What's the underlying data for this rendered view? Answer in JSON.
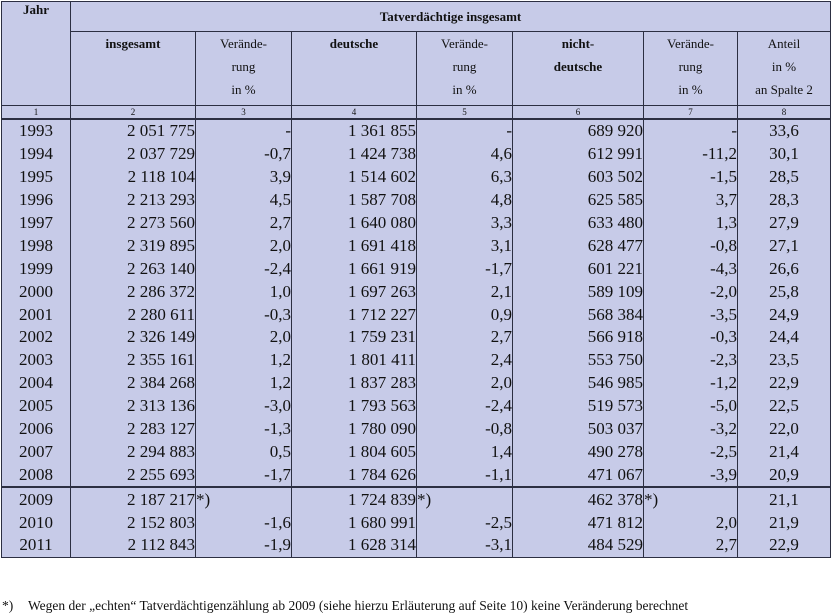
{
  "table": {
    "group_header": "Tatverdächtige insgesamt",
    "columns": {
      "jahr": "Jahr",
      "insgesamt": "insgesamt",
      "veraenderung": [
        "Verände-",
        "rung",
        "in %"
      ],
      "deutsche": "deutsche",
      "nichtdeutsche": [
        "nicht-",
        "deutsche"
      ],
      "anteil": [
        "Anteil",
        "in %",
        "an Spalte 2"
      ]
    },
    "column_numbers": [
      "1",
      "2",
      "3",
      "4",
      "5",
      "6",
      "7",
      "8"
    ],
    "rows": [
      {
        "year": "1993",
        "total": "2 051 775",
        "total_chg": "-",
        "german": "1 361 855",
        "german_chg": "-",
        "foreign": "689 920",
        "foreign_chg": "-",
        "share": "33,6"
      },
      {
        "year": "1994",
        "total": "2 037 729",
        "total_chg": "-0,7",
        "german": "1 424 738",
        "german_chg": "4,6",
        "foreign": "612 991",
        "foreign_chg": "-11,2",
        "share": "30,1"
      },
      {
        "year": "1995",
        "total": "2 118 104",
        "total_chg": "3,9",
        "german": "1 514 602",
        "german_chg": "6,3",
        "foreign": "603 502",
        "foreign_chg": "-1,5",
        "share": "28,5"
      },
      {
        "year": "1996",
        "total": "2 213 293",
        "total_chg": "4,5",
        "german": "1 587 708",
        "german_chg": "4,8",
        "foreign": "625 585",
        "foreign_chg": "3,7",
        "share": "28,3"
      },
      {
        "year": "1997",
        "total": "2 273 560",
        "total_chg": "2,7",
        "german": "1 640 080",
        "german_chg": "3,3",
        "foreign": "633 480",
        "foreign_chg": "1,3",
        "share": "27,9"
      },
      {
        "year": "1998",
        "total": "2 319 895",
        "total_chg": "2,0",
        "german": "1 691 418",
        "german_chg": "3,1",
        "foreign": "628 477",
        "foreign_chg": "-0,8",
        "share": "27,1"
      },
      {
        "year": "1999",
        "total": "2 263 140",
        "total_chg": "-2,4",
        "german": "1 661 919",
        "german_chg": "-1,7",
        "foreign": "601 221",
        "foreign_chg": "-4,3",
        "share": "26,6"
      },
      {
        "year": "2000",
        "total": "2 286 372",
        "total_chg": "1,0",
        "german": "1 697 263",
        "german_chg": "2,1",
        "foreign": "589 109",
        "foreign_chg": "-2,0",
        "share": "25,8"
      },
      {
        "year": "2001",
        "total": "2 280 611",
        "total_chg": "-0,3",
        "german": "1 712 227",
        "german_chg": "0,9",
        "foreign": "568 384",
        "foreign_chg": "-3,5",
        "share": "24,9"
      },
      {
        "year": "2002",
        "total": "2 326 149",
        "total_chg": "2,0",
        "german": "1 759 231",
        "german_chg": "2,7",
        "foreign": "566 918",
        "foreign_chg": "-0,3",
        "share": "24,4"
      },
      {
        "year": "2003",
        "total": "2 355 161",
        "total_chg": "1,2",
        "german": "1 801 411",
        "german_chg": "2,4",
        "foreign": "553 750",
        "foreign_chg": "-2,3",
        "share": "23,5"
      },
      {
        "year": "2004",
        "total": "2 384 268",
        "total_chg": "1,2",
        "german": "1 837 283",
        "german_chg": "2,0",
        "foreign": "546 985",
        "foreign_chg": "-1,2",
        "share": "22,9"
      },
      {
        "year": "2005",
        "total": "2 313 136",
        "total_chg": "-3,0",
        "german": "1 793 563",
        "german_chg": "-2,4",
        "foreign": "519 573",
        "foreign_chg": "-5,0",
        "share": "22,5"
      },
      {
        "year": "2006",
        "total": "2 283 127",
        "total_chg": "-1,3",
        "german": "1 780 090",
        "german_chg": "-0,8",
        "foreign": "503 037",
        "foreign_chg": "-3,2",
        "share": "22,0"
      },
      {
        "year": "2007",
        "total": "2 294 883",
        "total_chg": "0,5",
        "german": "1 804 605",
        "german_chg": "1,4",
        "foreign": "490 278",
        "foreign_chg": "-2,5",
        "share": "21,4"
      },
      {
        "year": "2008",
        "total": "2 255 693",
        "total_chg": "-1,7",
        "german": "1 784 626",
        "german_chg": "-1,1",
        "foreign": "471 067",
        "foreign_chg": "-3,9",
        "share": "20,9"
      },
      {
        "year": "2009",
        "total": "2 187 217",
        "total_chg": "*)",
        "german": "1 724 839",
        "german_chg": "*)",
        "foreign": "462 378",
        "foreign_chg": "*)",
        "share": "21,1"
      },
      {
        "year": "2010",
        "total": "2 152 803",
        "total_chg": "-1,6",
        "german": "1 680 991",
        "german_chg": "-2,5",
        "foreign": "471 812",
        "foreign_chg": "2,0",
        "share": "21,9"
      },
      {
        "year": "2011",
        "total": "2 112 843",
        "total_chg": "-1,9",
        "german": "1 628 314",
        "german_chg": "-3,1",
        "foreign": "484 529",
        "foreign_chg": "2,7",
        "share": "22,9"
      }
    ]
  },
  "footnote": {
    "marker": "*)",
    "text": "Wegen der „echten“ Tatverdächtigenzählung ab 2009 (siehe hierzu Erläuterung auf Seite 10) keine Veränderung berechnet"
  },
  "colors": {
    "table_background": "#c7cbe8",
    "rule": "#2c2f42",
    "page_background": "#ffffff"
  }
}
